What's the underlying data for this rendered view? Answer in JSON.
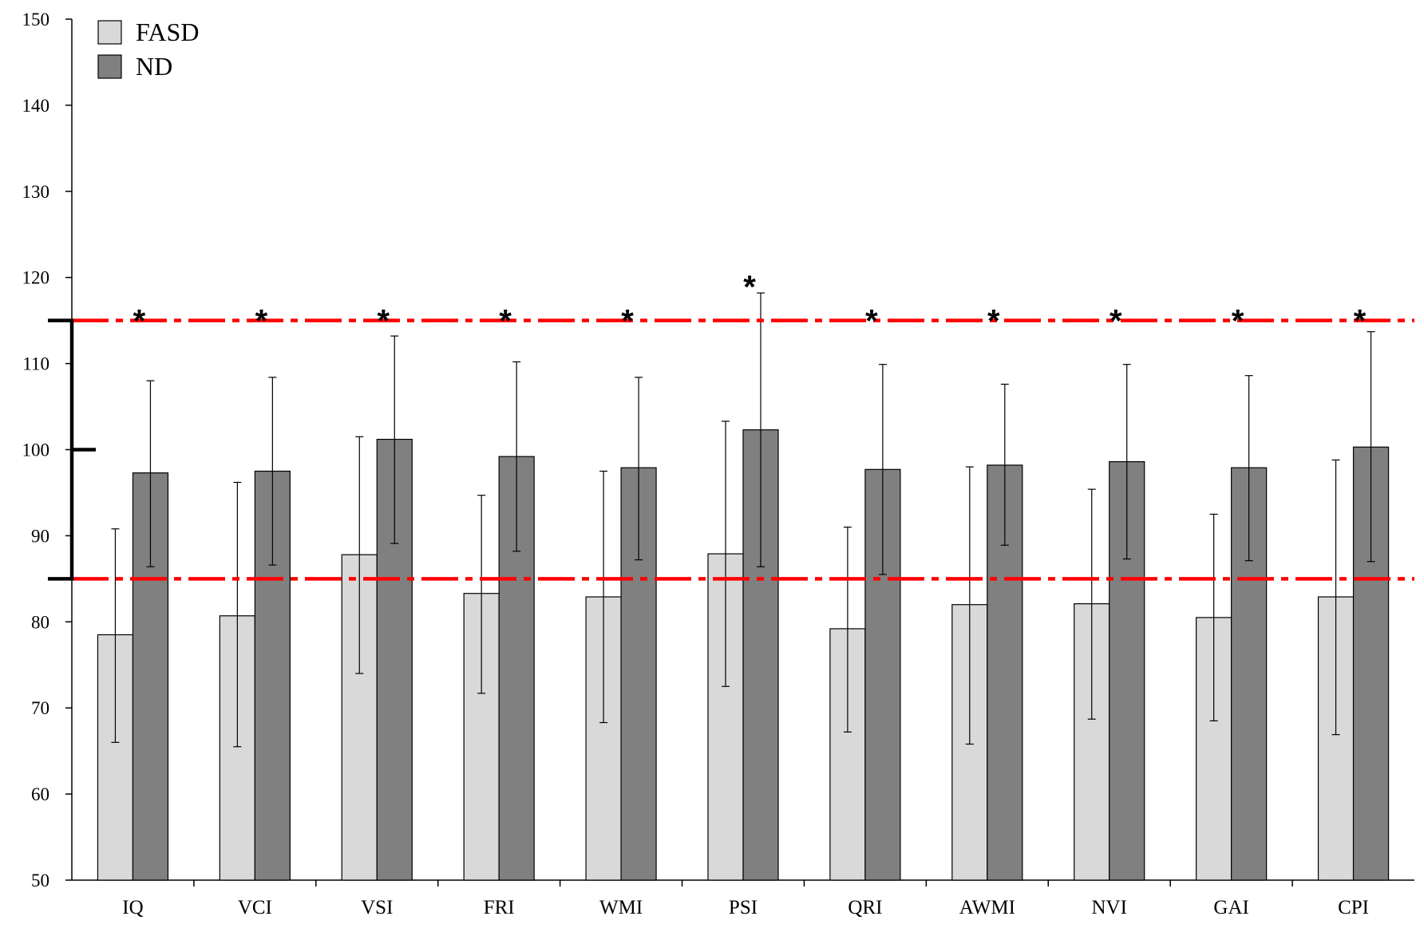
{
  "chart_data": {
    "type": "bar",
    "categories": [
      "IQ",
      "VCI",
      "VSI",
      "FRI",
      "WMI",
      "PSI",
      "QRI",
      "AWMI",
      "NVI",
      "GAI",
      "CPI"
    ],
    "series": [
      {
        "name": "FASD",
        "color": "#d9d9d9",
        "values": [
          78.5,
          80.7,
          87.8,
          83.3,
          82.9,
          87.9,
          79.2,
          82.0,
          82.1,
          80.5,
          82.9
        ],
        "error_low": [
          66.0,
          65.5,
          74.0,
          71.7,
          68.3,
          72.5,
          67.2,
          65.8,
          68.7,
          68.5,
          66.9
        ],
        "error_high": [
          90.8,
          96.2,
          101.5,
          94.7,
          97.5,
          103.3,
          91.0,
          98.0,
          95.4,
          92.5,
          98.8
        ]
      },
      {
        "name": "ND",
        "color": "#808080",
        "values": [
          97.3,
          97.5,
          101.2,
          99.2,
          97.9,
          102.3,
          97.7,
          98.2,
          98.6,
          97.9,
          100.3
        ],
        "error_low": [
          86.4,
          86.6,
          89.1,
          88.2,
          87.2,
          86.4,
          85.5,
          88.9,
          87.3,
          87.1,
          87.0
        ],
        "error_high": [
          108.0,
          108.4,
          113.2,
          110.2,
          108.4,
          118.2,
          109.9,
          107.6,
          109.9,
          108.6,
          113.7
        ]
      }
    ],
    "significance_markers": [
      "*",
      "*",
      "*",
      "*",
      "*",
      "*",
      "*",
      "*",
      "*",
      "*",
      "*"
    ],
    "reference_lines": [
      115,
      85
    ],
    "reference_line_color": "#ff0000",
    "bracket": [
      85,
      115
    ],
    "ylim": [
      50,
      150
    ],
    "yticks": [
      "50",
      "60",
      "70",
      "80",
      "90",
      "100",
      "110",
      "120",
      "130",
      "140",
      "150"
    ],
    "xlabel": "",
    "ylabel": "",
    "title": "",
    "grid": false,
    "legend_position": "top-left"
  }
}
